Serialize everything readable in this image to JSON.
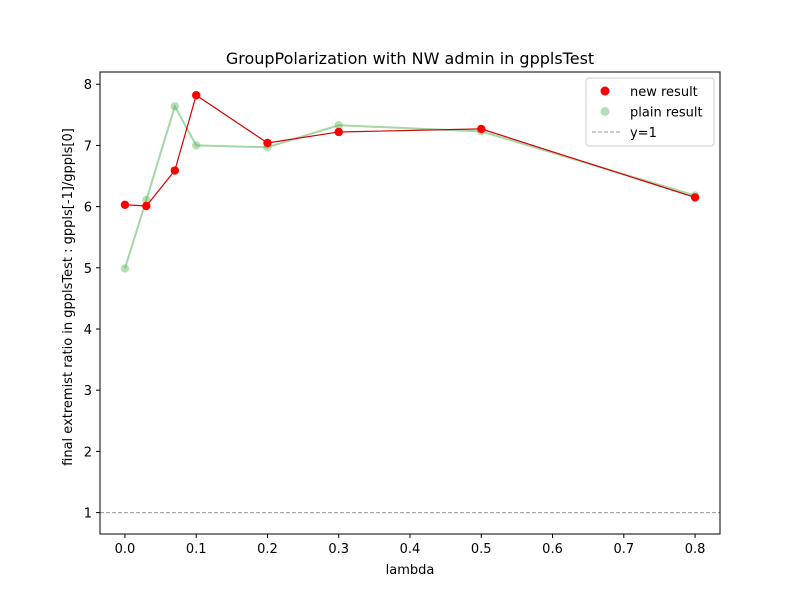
{
  "chart_data": {
    "type": "line",
    "title": "GroupPolarization with NW admin in gpplsTest",
    "xlabel": "lambda",
    "ylabel": "final extremist ratio in  gpplsTest : gppls[-1]/gppls[0]",
    "xlim": [
      -0.035,
      0.835
    ],
    "ylim": [
      0.65,
      8.2
    ],
    "xticks": [
      0.0,
      0.1,
      0.2,
      0.3,
      0.4,
      0.5,
      0.6,
      0.7,
      0.8
    ],
    "xtick_labels": [
      "0.0",
      "0.1",
      "0.2",
      "0.3",
      "0.4",
      "0.5",
      "0.6",
      "0.7",
      "0.8"
    ],
    "yticks": [
      1,
      2,
      3,
      4,
      5,
      6,
      7,
      8
    ],
    "ytick_labels": [
      "1",
      "2",
      "3",
      "4",
      "5",
      "6",
      "7",
      "8"
    ],
    "legend_position": "top-right",
    "series": [
      {
        "name": "new result",
        "color": "#ff0000",
        "line_color": "#d40000",
        "x": [
          0.0,
          0.03,
          0.07,
          0.1,
          0.2,
          0.3,
          0.5,
          0.8
        ],
        "y": [
          6.03,
          6.01,
          6.59,
          7.82,
          7.04,
          7.22,
          7.27,
          6.15
        ]
      },
      {
        "name": "plain result",
        "color": "#5cb85c",
        "line_color": "#8fcc8f",
        "x": [
          0.0,
          0.03,
          0.07,
          0.1,
          0.2,
          0.3,
          0.5,
          0.8
        ],
        "y": [
          4.99,
          6.11,
          7.64,
          7.0,
          6.97,
          7.33,
          7.23,
          6.18
        ]
      }
    ],
    "reference_line": {
      "name": "y=1",
      "y": 1,
      "color": "#999999"
    }
  }
}
